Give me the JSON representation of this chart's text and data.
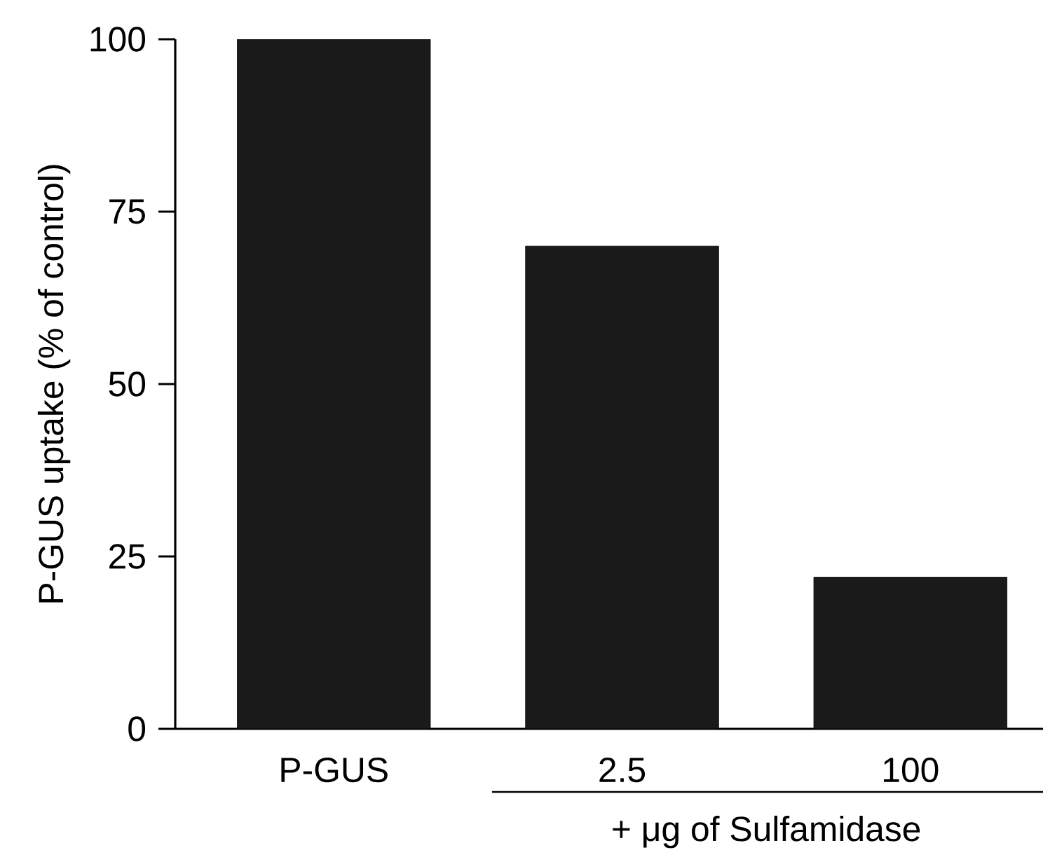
{
  "chart_data": {
    "type": "bar",
    "ylabel": "P-GUS uptake (% of control)",
    "xlabel": "+ μg of Sulfamidase",
    "categories": [
      "P-GUS",
      "2.5",
      "100"
    ],
    "values": [
      100,
      70,
      22
    ],
    "color": "#1a1a1a",
    "ylim": [
      0,
      100
    ],
    "yticks": [
      0,
      25,
      50,
      75,
      100
    ],
    "grid": false
  }
}
